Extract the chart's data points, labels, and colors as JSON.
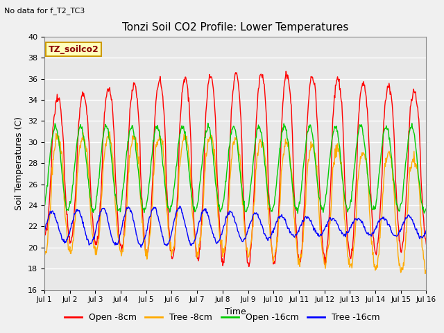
{
  "title": "Tonzi Soil CO2 Profile: Lower Temperatures",
  "no_data_text": "No data for f_T2_TC3",
  "annotation_text": "TZ_soilco2",
  "xlabel": "Time",
  "ylabel": "Soil Temperatures (C)",
  "ylim": [
    16,
    40
  ],
  "xlim": [
    0,
    15
  ],
  "xtick_labels": [
    "Jul 1",
    "Jul 2",
    "Jul 3",
    "Jul 4",
    "Jul 5",
    "Jul 6",
    "Jul 7",
    "Jul 8",
    "Jul 9",
    "Jul 10",
    "Jul 11",
    "Jul 12",
    "Jul 13",
    "Jul 14",
    "Jul 15",
    "Jul 16"
  ],
  "ytick_values": [
    16,
    18,
    20,
    22,
    24,
    26,
    28,
    30,
    32,
    34,
    36,
    38,
    40
  ],
  "bg_color": "#e8e8e8",
  "fig_bg_color": "#f0f0f0",
  "line_colors": [
    "#ff0000",
    "#ffaa00",
    "#00cc00",
    "#0000ff"
  ],
  "legend_labels": [
    "Open -8cm",
    "Tree -8cm",
    "Open -16cm",
    "Tree -16cm"
  ],
  "fig_width": 6.4,
  "fig_height": 4.8,
  "dpi": 100
}
